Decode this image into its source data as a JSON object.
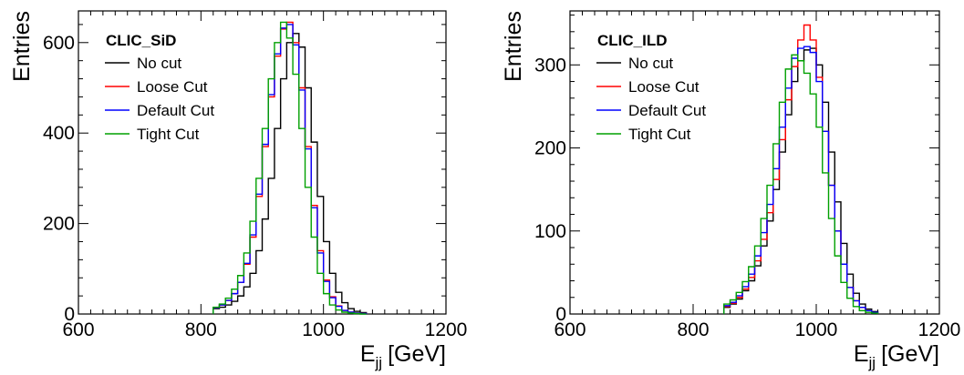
{
  "colors": {
    "no_cut": "#000000",
    "loose_cut": "#ff0000",
    "default_cut": "#0000ff",
    "tight_cut": "#00a000"
  },
  "chart_data": [
    {
      "type": "line",
      "style": "step-histogram",
      "title": "",
      "legend_title": "CLIC_SiD",
      "legend_placement": "top-left",
      "xlabel": "E",
      "xlabel_subscript": "jj",
      "xlabel_unit": "[GeV]",
      "ylabel": "Entries",
      "xlim": [
        600,
        1200
      ],
      "ylim": [
        0,
        670
      ],
      "x_ticks": [
        600,
        800,
        1000,
        1200
      ],
      "y_ticks": [
        0,
        200,
        400,
        600
      ],
      "grid": false,
      "x": [
        820,
        830,
        840,
        850,
        860,
        870,
        880,
        890,
        900,
        910,
        920,
        930,
        940,
        950,
        960,
        970,
        980,
        990,
        1000,
        1010,
        1020,
        1030,
        1040,
        1050,
        1060
      ],
      "series": [
        {
          "name": "No cut",
          "color_key": "no_cut",
          "values": [
            12,
            15,
            20,
            28,
            40,
            60,
            90,
            140,
            210,
            300,
            410,
            520,
            600,
            620,
            590,
            500,
            380,
            260,
            160,
            90,
            48,
            25,
            12,
            6,
            3
          ]
        },
        {
          "name": "Loose Cut",
          "color_key": "loose_cut",
          "values": [
            14,
            20,
            30,
            45,
            70,
            110,
            170,
            260,
            370,
            480,
            570,
            630,
            645,
            600,
            500,
            370,
            240,
            140,
            75,
            38,
            18,
            8,
            4,
            2,
            1
          ]
        },
        {
          "name": "Default Cut",
          "color_key": "default_cut",
          "values": [
            14,
            20,
            30,
            45,
            70,
            112,
            175,
            265,
            375,
            485,
            575,
            632,
            640,
            595,
            495,
            365,
            235,
            135,
            72,
            36,
            17,
            8,
            4,
            2,
            1
          ]
        },
        {
          "name": "Tight Cut",
          "color_key": "tight_cut",
          "values": [
            15,
            22,
            35,
            55,
            85,
            135,
            205,
            300,
            410,
            520,
            600,
            645,
            610,
            530,
            410,
            280,
            170,
            90,
            45,
            20,
            9,
            4,
            2,
            1,
            0
          ]
        }
      ]
    },
    {
      "type": "line",
      "style": "step-histogram",
      "title": "",
      "legend_title": "CLIC_ILD",
      "legend_placement": "top-left",
      "xlabel": "E",
      "xlabel_subscript": "jj",
      "xlabel_unit": "[GeV]",
      "ylabel": "Entries",
      "xlim": [
        600,
        1200
      ],
      "ylim": [
        0,
        365
      ],
      "x_ticks": [
        600,
        800,
        1000,
        1200
      ],
      "y_ticks": [
        0,
        100,
        200,
        300
      ],
      "grid": false,
      "x": [
        850,
        860,
        870,
        880,
        890,
        900,
        910,
        920,
        930,
        940,
        950,
        960,
        970,
        980,
        990,
        1000,
        1010,
        1020,
        1030,
        1040,
        1050,
        1060,
        1070,
        1080,
        1090
      ],
      "series": [
        {
          "name": "No cut",
          "color_key": "no_cut",
          "values": [
            8,
            12,
            18,
            28,
            40,
            58,
            82,
            112,
            150,
            195,
            240,
            280,
            305,
            318,
            320,
            300,
            255,
            195,
            135,
            85,
            48,
            25,
            12,
            6,
            3
          ]
        },
        {
          "name": "Loose Cut",
          "color_key": "loose_cut",
          "values": [
            9,
            13,
            20,
            30,
            44,
            64,
            90,
            122,
            162,
            210,
            258,
            298,
            330,
            348,
            330,
            285,
            220,
            155,
            100,
            60,
            32,
            16,
            8,
            4,
            2
          ]
        },
        {
          "name": "Default Cut",
          "color_key": "default_cut",
          "values": [
            10,
            14,
            22,
            33,
            48,
            70,
            98,
            132,
            175,
            225,
            272,
            308,
            320,
            322,
            315,
            280,
            220,
            155,
            100,
            60,
            32,
            16,
            8,
            4,
            2
          ]
        },
        {
          "name": "Tight Cut",
          "color_key": "tight_cut",
          "values": [
            12,
            17,
            26,
            39,
            57,
            82,
            115,
            155,
            205,
            255,
            295,
            312,
            305,
            290,
            265,
            225,
            170,
            115,
            70,
            38,
            19,
            9,
            4,
            2,
            1
          ]
        }
      ]
    }
  ]
}
